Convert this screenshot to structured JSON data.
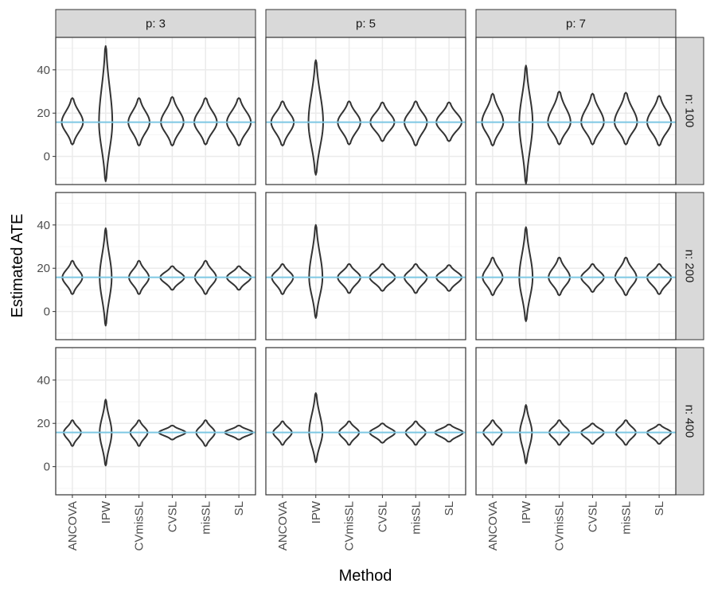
{
  "chart_data": {
    "type": "violin",
    "xlabel": "Method",
    "ylabel": "Estimated ATE",
    "ylim": [
      -13,
      55
    ],
    "yticks": [
      0,
      20,
      40
    ],
    "reference_line": 15.8,
    "colors": {
      "reference_line": "#7ec8e3",
      "violin_stroke": "#333333",
      "strip_fill": "#d9d9d9",
      "grid_major": "#ebebeb",
      "grid_minor": "#f5f5f5",
      "panel_border": "#333333"
    },
    "methods": [
      "ANCOVA",
      "IPW",
      "CVmisSL",
      "CVSL",
      "misSL",
      "SL"
    ],
    "col_facets": [
      "p: 3",
      "p: 5",
      "p: 7"
    ],
    "row_facets": [
      "n: 100",
      "n: 200",
      "n: 400"
    ],
    "violins": [
      [
        [
          {
            "min": 5.5,
            "max": 27,
            "w": 0.32
          },
          {
            "min": -11.5,
            "max": 51,
            "w": 0.2
          },
          {
            "min": 5,
            "max": 27,
            "w": 0.32
          },
          {
            "min": 5,
            "max": 27.5,
            "w": 0.34
          },
          {
            "min": 5.5,
            "max": 27,
            "w": 0.34
          },
          {
            "min": 5,
            "max": 27,
            "w": 0.36
          }
        ],
        [
          {
            "min": 5,
            "max": 25.5,
            "w": 0.34
          },
          {
            "min": -8.5,
            "max": 44.5,
            "w": 0.22
          },
          {
            "min": 5.5,
            "max": 25.5,
            "w": 0.34
          },
          {
            "min": 7,
            "max": 25,
            "w": 0.36
          },
          {
            "min": 5,
            "max": 25.5,
            "w": 0.34
          },
          {
            "min": 7,
            "max": 25,
            "w": 0.38
          }
        ],
        [
          {
            "min": 5,
            "max": 29,
            "w": 0.32
          },
          {
            "min": -12.5,
            "max": 42,
            "w": 0.2
          },
          {
            "min": 5.5,
            "max": 30,
            "w": 0.34
          },
          {
            "min": 5.5,
            "max": 29,
            "w": 0.34
          },
          {
            "min": 5.5,
            "max": 29.5,
            "w": 0.34
          },
          {
            "min": 5,
            "max": 28,
            "w": 0.36
          }
        ]
      ],
      [
        [
          {
            "min": 8,
            "max": 23.5,
            "w": 0.3
          },
          {
            "min": -6.5,
            "max": 38.5,
            "w": 0.18
          },
          {
            "min": 8,
            "max": 23.5,
            "w": 0.3
          },
          {
            "min": 10,
            "max": 21,
            "w": 0.36
          },
          {
            "min": 8,
            "max": 23.5,
            "w": 0.32
          },
          {
            "min": 10,
            "max": 21,
            "w": 0.36
          }
        ],
        [
          {
            "min": 8,
            "max": 22,
            "w": 0.32
          },
          {
            "min": -3,
            "max": 40,
            "w": 0.2
          },
          {
            "min": 8.5,
            "max": 22,
            "w": 0.34
          },
          {
            "min": 9.5,
            "max": 22,
            "w": 0.38
          },
          {
            "min": 8.5,
            "max": 22,
            "w": 0.34
          },
          {
            "min": 9.5,
            "max": 21.5,
            "w": 0.38
          }
        ],
        [
          {
            "min": 7.5,
            "max": 25,
            "w": 0.3
          },
          {
            "min": -4.5,
            "max": 39,
            "w": 0.2
          },
          {
            "min": 7.5,
            "max": 25,
            "w": 0.32
          },
          {
            "min": 9,
            "max": 22,
            "w": 0.34
          },
          {
            "min": 7.5,
            "max": 25,
            "w": 0.32
          },
          {
            "min": 8,
            "max": 22,
            "w": 0.36
          }
        ]
      ],
      [
        [
          {
            "min": 9.5,
            "max": 21.5,
            "w": 0.26
          },
          {
            "min": 0.5,
            "max": 31,
            "w": 0.18
          },
          {
            "min": 9.5,
            "max": 21.5,
            "w": 0.26
          },
          {
            "min": 12.5,
            "max": 19,
            "w": 0.4
          },
          {
            "min": 9.5,
            "max": 21.5,
            "w": 0.28
          },
          {
            "min": 12.5,
            "max": 19,
            "w": 0.42
          }
        ],
        [
          {
            "min": 10,
            "max": 21,
            "w": 0.28
          },
          {
            "min": 2,
            "max": 34,
            "w": 0.2
          },
          {
            "min": 10,
            "max": 21,
            "w": 0.3
          },
          {
            "min": 11,
            "max": 20,
            "w": 0.38
          },
          {
            "min": 10,
            "max": 21,
            "w": 0.3
          },
          {
            "min": 11.5,
            "max": 19.5,
            "w": 0.42
          }
        ],
        [
          {
            "min": 10,
            "max": 21.5,
            "w": 0.28
          },
          {
            "min": 1.5,
            "max": 28.5,
            "w": 0.18
          },
          {
            "min": 10,
            "max": 21.5,
            "w": 0.3
          },
          {
            "min": 10.5,
            "max": 20,
            "w": 0.34
          },
          {
            "min": 10,
            "max": 21.5,
            "w": 0.3
          },
          {
            "min": 10.5,
            "max": 19.5,
            "w": 0.36
          }
        ]
      ]
    ]
  }
}
